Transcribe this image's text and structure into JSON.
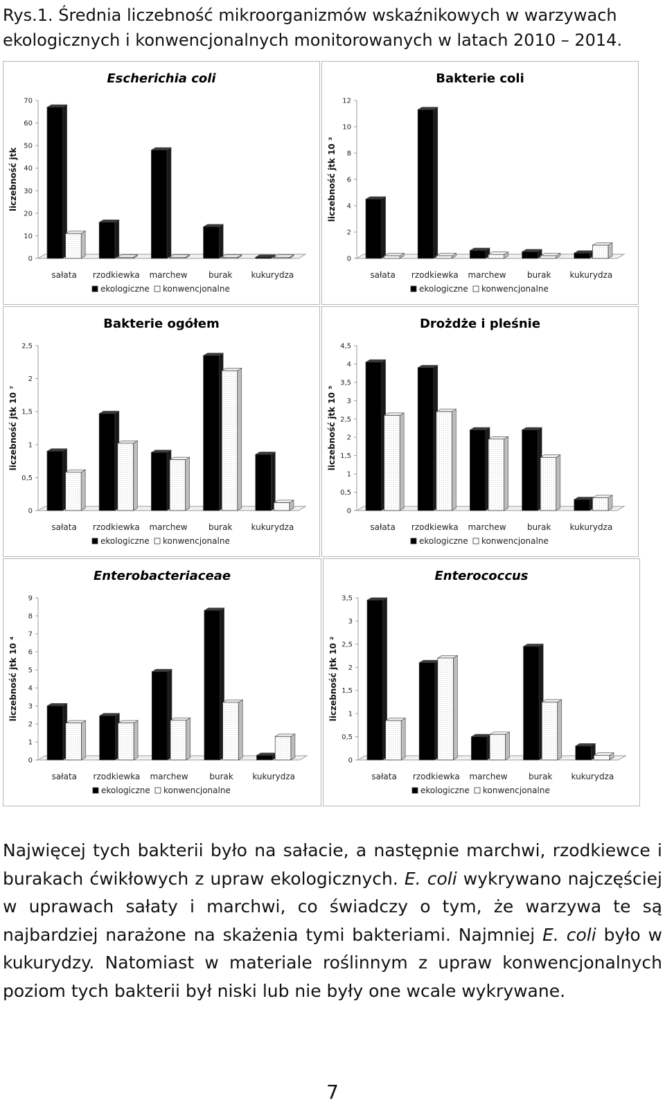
{
  "caption": "Rys.1. Średnia liczebność mikroorganizmów wskaźnikowych w warzywach ekologicznych i konwencjonalnych monitorowanych w latach 2010 – 2014.",
  "chart_data": [
    {
      "type": "bar",
      "title": "Escherichia coli",
      "title_italic": true,
      "ylabel": "liczebność jtk",
      "categories": [
        "sałata",
        "rzodkiewka",
        "marchew",
        "burak",
        "kukurydza"
      ],
      "series": [
        {
          "name": "ekologiczne",
          "values": [
            67,
            16,
            48,
            14,
            0.5
          ]
        },
        {
          "name": "konwencjonalne",
          "values": [
            11,
            0.5,
            0.5,
            0.5,
            0.5
          ]
        }
      ],
      "ylim": [
        0,
        70
      ],
      "yticks": [
        0,
        10,
        20,
        30,
        40,
        50,
        60,
        70
      ],
      "ytick_labels": [
        "0",
        "10",
        "20",
        "30",
        "40",
        "50",
        "60",
        "70"
      ],
      "legend": "bottom"
    },
    {
      "type": "bar",
      "title": "Bakterie coli",
      "title_italic": false,
      "ylabel": "liczebność jtk 10 ³",
      "categories": [
        "sałata",
        "rzodkiewka",
        "marchew",
        "burak",
        "kukurydza"
      ],
      "series": [
        {
          "name": "ekologiczne",
          "values": [
            4.5,
            11.3,
            0.6,
            0.5,
            0.4
          ]
        },
        {
          "name": "konwencjonalne",
          "values": [
            0.2,
            0.2,
            0.3,
            0.2,
            1.0
          ]
        }
      ],
      "ylim": [
        0,
        12
      ],
      "yticks": [
        0,
        2,
        4,
        6,
        8,
        10,
        12
      ],
      "ytick_labels": [
        "0",
        "2",
        "4",
        "6",
        "8",
        "10",
        "12"
      ],
      "legend": "bottom"
    },
    {
      "type": "bar",
      "title": "Bakterie ogółem",
      "title_italic": false,
      "ylabel": "liczebność jtk 10 ⁷",
      "categories": [
        "sałata",
        "rzodkiewka",
        "marchew",
        "burak",
        "kukurydza"
      ],
      "series": [
        {
          "name": "ekologiczne",
          "values": [
            0.9,
            1.47,
            0.88,
            2.35,
            0.85
          ]
        },
        {
          "name": "konwencjonalne",
          "values": [
            0.58,
            1.02,
            0.77,
            2.12,
            0.12
          ]
        }
      ],
      "ylim": [
        0,
        2.5
      ],
      "yticks": [
        0,
        0.5,
        1,
        1.5,
        2,
        2.5
      ],
      "ytick_labels": [
        "0",
        "0,5",
        "1",
        "1,5",
        "2",
        "2,5"
      ],
      "legend": "bottom"
    },
    {
      "type": "bar",
      "title": "Drożdże i pleśnie",
      "title_italic": false,
      "ylabel": "liczebność jtk 10 ⁵",
      "categories": [
        "sałata",
        "rzodkiewka",
        "marchew",
        "burak",
        "kukurydza"
      ],
      "series": [
        {
          "name": "ekologiczne",
          "values": [
            4.05,
            3.9,
            2.2,
            2.2,
            0.3
          ]
        },
        {
          "name": "konwencjonalne",
          "values": [
            2.6,
            2.7,
            1.95,
            1.45,
            0.35
          ]
        }
      ],
      "ylim": [
        0,
        4.5
      ],
      "yticks": [
        0,
        0.5,
        1,
        1.5,
        2,
        2.5,
        3,
        3.5,
        4,
        4.5
      ],
      "ytick_labels": [
        "0",
        "0,5",
        "1",
        "1,5",
        "2",
        "2,5",
        "3",
        "3,5",
        "4",
        "4,5"
      ],
      "legend": "bottom"
    },
    {
      "type": "bar",
      "title": "Enterobacteriaceae",
      "title_italic": true,
      "ylabel": "liczebność jtk 10 ⁴",
      "categories": [
        "sałata",
        "rzodkiewka",
        "marchew",
        "burak",
        "kukurydza"
      ],
      "series": [
        {
          "name": "ekologiczne",
          "values": [
            3.0,
            2.45,
            4.9,
            8.3,
            0.25
          ]
        },
        {
          "name": "konwencjonalne",
          "values": [
            2.05,
            2.05,
            2.2,
            3.2,
            1.3
          ]
        }
      ],
      "ylim": [
        0,
        9
      ],
      "yticks": [
        0,
        1,
        2,
        3,
        4,
        5,
        6,
        7,
        8,
        9
      ],
      "ytick_labels": [
        "0",
        "1",
        "2",
        "3",
        "4",
        "5",
        "6",
        "7",
        "8",
        "9"
      ],
      "legend": "bottom"
    },
    {
      "type": "bar",
      "title": "Enterococcus",
      "title_italic": true,
      "ylabel": "liczebność jtk 10 ²",
      "categories": [
        "sałata",
        "rzodkiewka",
        "marchew",
        "burak",
        "kukurydza"
      ],
      "series": [
        {
          "name": "ekologiczne",
          "values": [
            3.45,
            2.1,
            0.5,
            2.45,
            0.3
          ]
        },
        {
          "name": "konwencjonalne",
          "values": [
            0.85,
            2.2,
            0.55,
            1.25,
            0.1
          ]
        }
      ],
      "ylim": [
        0,
        3.5
      ],
      "yticks": [
        0,
        0.5,
        1,
        1.5,
        2,
        2.5,
        3,
        3.5
      ],
      "ytick_labels": [
        "0",
        "0,5",
        "1",
        "1,5",
        "2",
        "2,5",
        "3",
        "3,5"
      ],
      "legend": "bottom"
    }
  ],
  "body": {
    "s1": "Najwięcej tych bakterii było na sałacie, a następnie marchwi, rzodkiewce i burakach ćwikłowych z upraw ekologicznych.",
    "s2_em": "E. coli",
    "s2": "wykrywano najczęściej w uprawach sałaty i marchwi, co świadczy o tym, że warzywa te są najbardziej narażone na skażenia tymi bakteriami. Najmniej",
    "s3_em": "E. coli",
    "s3": "było w kukurydzy. Natomiast w materiale roślinnym z upraw konwencjonalnych poziom tych bakterii był niski lub nie były one wcale wykrywane."
  },
  "page_number": "7",
  "colors": {
    "ekologiczne": "#000000",
    "konwencjonalne": "#ffffff",
    "panel_border": "#b5b5b5"
  }
}
